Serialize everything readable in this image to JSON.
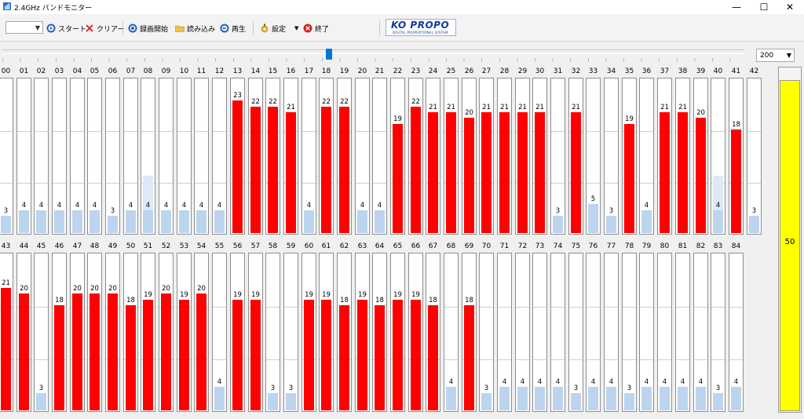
{
  "window": {
    "title": "2.4GHz バンドモニター",
    "minimize": "—",
    "maximize": "☐",
    "close": "✕"
  },
  "toolbar": {
    "start_label": "スタート",
    "clear_label": "クリアー",
    "record_label": "録画開始",
    "load_label": "読み込み",
    "play_label": "再生",
    "settings_label": "設定",
    "exit_label": "終了",
    "logo_main": "KO PROPO",
    "logo_sub": "DIGITAL PROPORTIONAL SYSTEM",
    "channel_combo_value": ""
  },
  "slider": {
    "position": 0.44
  },
  "scale_select": {
    "value": "200"
  },
  "colors": {
    "active": "#ff0000",
    "idle": "#bcd4ee",
    "level": "#ffff00"
  },
  "max_value": 27,
  "channels_row1": [
    {
      "ch": "00",
      "v": 3,
      "s": "idle"
    },
    {
      "ch": "01",
      "v": 4,
      "s": "idle"
    },
    {
      "ch": "02",
      "v": 4,
      "s": "idle"
    },
    {
      "ch": "03",
      "v": 4,
      "s": "idle"
    },
    {
      "ch": "04",
      "v": 4,
      "s": "idle"
    },
    {
      "ch": "05",
      "v": 4,
      "s": "idle"
    },
    {
      "ch": "06",
      "v": 3,
      "s": "idle"
    },
    {
      "ch": "07",
      "v": 4,
      "s": "idle"
    },
    {
      "ch": "08",
      "v": 4,
      "s": "idle",
      "peak": 10
    },
    {
      "ch": "09",
      "v": 4,
      "s": "idle"
    },
    {
      "ch": "10",
      "v": 4,
      "s": "idle"
    },
    {
      "ch": "11",
      "v": 4,
      "s": "idle"
    },
    {
      "ch": "12",
      "v": 4,
      "s": "idle"
    },
    {
      "ch": "13",
      "v": 23,
      "s": "active"
    },
    {
      "ch": "14",
      "v": 22,
      "s": "active"
    },
    {
      "ch": "15",
      "v": 22,
      "s": "active"
    },
    {
      "ch": "16",
      "v": 21,
      "s": "active"
    },
    {
      "ch": "17",
      "v": 4,
      "s": "idle"
    },
    {
      "ch": "18",
      "v": 22,
      "s": "active"
    },
    {
      "ch": "19",
      "v": 22,
      "s": "active"
    },
    {
      "ch": "20",
      "v": 4,
      "s": "idle"
    },
    {
      "ch": "21",
      "v": 4,
      "s": "idle"
    },
    {
      "ch": "22",
      "v": 19,
      "s": "active"
    },
    {
      "ch": "23",
      "v": 22,
      "s": "active"
    },
    {
      "ch": "24",
      "v": 21,
      "s": "active"
    },
    {
      "ch": "25",
      "v": 21,
      "s": "active"
    },
    {
      "ch": "26",
      "v": 20,
      "s": "active"
    },
    {
      "ch": "27",
      "v": 21,
      "s": "active"
    },
    {
      "ch": "28",
      "v": 21,
      "s": "active"
    },
    {
      "ch": "29",
      "v": 21,
      "s": "active"
    },
    {
      "ch": "30",
      "v": 21,
      "s": "active"
    },
    {
      "ch": "31",
      "v": 3,
      "s": "idle"
    },
    {
      "ch": "32",
      "v": 21,
      "s": "active"
    },
    {
      "ch": "33",
      "v": 5,
      "s": "idle"
    },
    {
      "ch": "34",
      "v": 3,
      "s": "idle"
    },
    {
      "ch": "35",
      "v": 19,
      "s": "active"
    },
    {
      "ch": "36",
      "v": 4,
      "s": "idle"
    },
    {
      "ch": "37",
      "v": 21,
      "s": "active"
    },
    {
      "ch": "38",
      "v": 21,
      "s": "active"
    },
    {
      "ch": "39",
      "v": 20,
      "s": "active"
    },
    {
      "ch": "40",
      "v": 4,
      "s": "idle",
      "peak": 10
    },
    {
      "ch": "41",
      "v": 18,
      "s": "active"
    },
    {
      "ch": "42",
      "v": 3,
      "s": "idle"
    }
  ],
  "channels_row2": [
    {
      "ch": "43",
      "v": 21,
      "s": "active"
    },
    {
      "ch": "44",
      "v": 20,
      "s": "active"
    },
    {
      "ch": "45",
      "v": 3,
      "s": "idle"
    },
    {
      "ch": "46",
      "v": 18,
      "s": "active"
    },
    {
      "ch": "47",
      "v": 20,
      "s": "active"
    },
    {
      "ch": "48",
      "v": 20,
      "s": "active"
    },
    {
      "ch": "49",
      "v": 20,
      "s": "active"
    },
    {
      "ch": "50",
      "v": 18,
      "s": "active"
    },
    {
      "ch": "51",
      "v": 19,
      "s": "active"
    },
    {
      "ch": "52",
      "v": 20,
      "s": "active"
    },
    {
      "ch": "53",
      "v": 19,
      "s": "active"
    },
    {
      "ch": "54",
      "v": 20,
      "s": "active"
    },
    {
      "ch": "55",
      "v": 4,
      "s": "idle"
    },
    {
      "ch": "56",
      "v": 19,
      "s": "active"
    },
    {
      "ch": "57",
      "v": 19,
      "s": "active"
    },
    {
      "ch": "58",
      "v": 3,
      "s": "idle"
    },
    {
      "ch": "59",
      "v": 3,
      "s": "idle"
    },
    {
      "ch": "60",
      "v": 19,
      "s": "active"
    },
    {
      "ch": "61",
      "v": 19,
      "s": "active"
    },
    {
      "ch": "62",
      "v": 18,
      "s": "active"
    },
    {
      "ch": "63",
      "v": 19,
      "s": "active"
    },
    {
      "ch": "64",
      "v": 18,
      "s": "active"
    },
    {
      "ch": "65",
      "v": 19,
      "s": "active"
    },
    {
      "ch": "66",
      "v": 19,
      "s": "active"
    },
    {
      "ch": "67",
      "v": 18,
      "s": "active"
    },
    {
      "ch": "68",
      "v": 4,
      "s": "idle"
    },
    {
      "ch": "69",
      "v": 18,
      "s": "active"
    },
    {
      "ch": "70",
      "v": 3,
      "s": "idle"
    },
    {
      "ch": "71",
      "v": 4,
      "s": "idle"
    },
    {
      "ch": "72",
      "v": 4,
      "s": "idle"
    },
    {
      "ch": "73",
      "v": 4,
      "s": "idle"
    },
    {
      "ch": "74",
      "v": 4,
      "s": "idle"
    },
    {
      "ch": "75",
      "v": 3,
      "s": "idle"
    },
    {
      "ch": "76",
      "v": 4,
      "s": "idle"
    },
    {
      "ch": "77",
      "v": 4,
      "s": "idle"
    },
    {
      "ch": "78",
      "v": 3,
      "s": "idle"
    },
    {
      "ch": "79",
      "v": 4,
      "s": "idle"
    },
    {
      "ch": "80",
      "v": 4,
      "s": "idle"
    },
    {
      "ch": "81",
      "v": 4,
      "s": "idle"
    },
    {
      "ch": "82",
      "v": 4,
      "s": "idle"
    },
    {
      "ch": "83",
      "v": 3,
      "s": "idle"
    },
    {
      "ch": "84",
      "v": 4,
      "s": "idle"
    }
  ],
  "level_meter": {
    "value": 50,
    "max": 52
  }
}
